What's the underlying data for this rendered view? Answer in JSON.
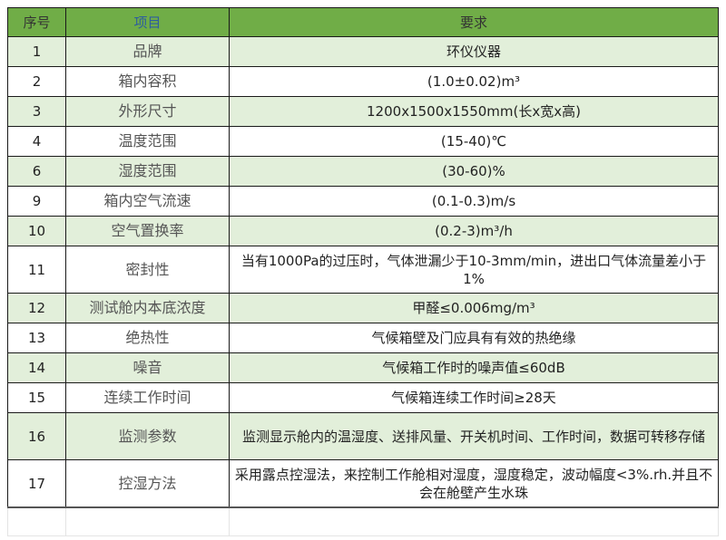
{
  "header": {
    "no": "序号",
    "item": "项目",
    "req": "要求"
  },
  "rows": [
    {
      "no": "1",
      "item": "品牌",
      "req": "环仪仪器"
    },
    {
      "no": "2",
      "item": "箱内容积",
      "req": "(1.0±0.02)m³"
    },
    {
      "no": "3",
      "item": "外形尺寸",
      "req": "1200x1500x1550mm(长x宽x高)"
    },
    {
      "no": "4",
      "item": "温度范围",
      "req": "(15-40)℃"
    },
    {
      "no": "6",
      "item": "湿度范围",
      "req": "(30-60)%"
    },
    {
      "no": "9",
      "item": "箱内空气流速",
      "req": "(0.1-0.3)m/s"
    },
    {
      "no": "10",
      "item": "空气置换率",
      "req": "(0.2-3)m³/h"
    },
    {
      "no": "11",
      "item": "密封性",
      "req": "当有1000Pa的过压时，气体泄漏少于10-3mm/min，进出口气体流量差小于1%"
    },
    {
      "no": "12",
      "item": "测试舱内本底浓度",
      "req": "甲醛≤0.006mg/m³"
    },
    {
      "no": "13",
      "item": "绝热性",
      "req": "气候箱壁及门应具有有效的热绝缘"
    },
    {
      "no": "14",
      "item": "噪音",
      "req": "气候箱工作时的噪声值≤60dB"
    },
    {
      "no": "15",
      "item": "连续工作时间",
      "req": "气候箱连续工作时间≥28天"
    },
    {
      "no": "16",
      "item": "监测参数",
      "req": "监测显示舱内的温湿度、送排风量、开关机时间、工作时间，数据可转移存储"
    },
    {
      "no": "17",
      "item": "控湿方法",
      "req": "采用露点控湿法，来控制工作舱相对湿度，湿度稳定，波动幅度<3%.rh.并且不会在舱壁产生水珠"
    }
  ],
  "colors": {
    "header": "#70ad47",
    "band": "#e2efda"
  }
}
